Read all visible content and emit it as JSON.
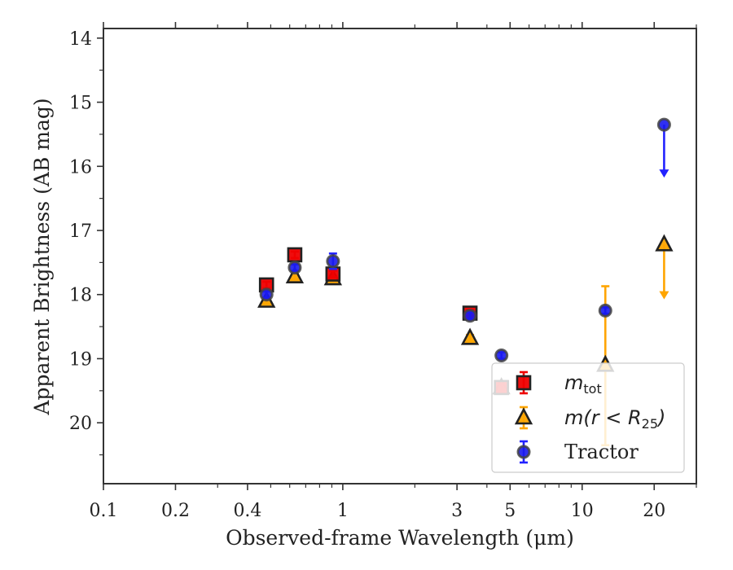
{
  "chart_data": {
    "type": "scatter",
    "xlabel": "Observed-frame Wavelength (μm)",
    "ylabel": "Apparent Brightness (AB mag)",
    "x_scale": "log",
    "xlim": [
      0.1,
      30
    ],
    "ylim": [
      20.95,
      13.85
    ],
    "y_inverted": true,
    "grid": false,
    "legend_position": "bottom-right",
    "x_ticks": [
      {
        "value": 0.1,
        "label": "0.1"
      },
      {
        "value": 0.2,
        "label": "0.2"
      },
      {
        "value": 0.4,
        "label": "0.4"
      },
      {
        "value": 1,
        "label": "1"
      },
      {
        "value": 3,
        "label": "3"
      },
      {
        "value": 5,
        "label": "5"
      },
      {
        "value": 10,
        "label": "10"
      },
      {
        "value": 20,
        "label": "20"
      }
    ],
    "x_minor_ticks": [
      0.3,
      0.5,
      0.6,
      0.7,
      0.8,
      0.9,
      2,
      4,
      6,
      7,
      8,
      9,
      30
    ],
    "y_ticks": [
      {
        "value": 14,
        "label": "14"
      },
      {
        "value": 15,
        "label": "15"
      },
      {
        "value": 16,
        "label": "16"
      },
      {
        "value": 17,
        "label": "17"
      },
      {
        "value": 18,
        "label": "18"
      },
      {
        "value": 19,
        "label": "19"
      },
      {
        "value": 20,
        "label": "20"
      }
    ],
    "y_minor_ticks": [
      14.5,
      15.5,
      16.5,
      17.5,
      18.5,
      19.5,
      20.5
    ],
    "series": [
      {
        "key": "mtot",
        "legend_main": "m",
        "legend_sub": "tot",
        "marker": "square",
        "color": "#ee0000",
        "edge": "#222222",
        "error_color": "#ee0000",
        "points": [
          {
            "x": 0.48,
            "y": 17.85,
            "err": 0.05
          },
          {
            "x": 0.63,
            "y": 17.38,
            "err": 0.05
          },
          {
            "x": 0.91,
            "y": 17.68,
            "err": 0.05
          },
          {
            "x": 3.4,
            "y": 18.29,
            "err": 0.05
          },
          {
            "x": 4.6,
            "y": 19.45,
            "err": 0.05
          }
        ]
      },
      {
        "key": "mr25",
        "legend_main": "m(r < R",
        "legend_sub": "25",
        "legend_tail": ")",
        "marker": "triangle",
        "color": "#ffa500",
        "edge": "#222222",
        "error_color": "#ffa500",
        "points": [
          {
            "x": 0.48,
            "y": 18.1,
            "err": 0.04
          },
          {
            "x": 0.63,
            "y": 17.72,
            "err": 0.04
          },
          {
            "x": 0.91,
            "y": 17.75,
            "err": 0.04
          },
          {
            "x": 3.4,
            "y": 18.68,
            "err": 0.05
          },
          {
            "x": 4.6,
            "y": 19.45,
            "err": 0.05
          },
          {
            "x": 12.5,
            "y": 19.1,
            "err_low": 1.25,
            "err_high": 1.23
          },
          {
            "x": 22,
            "y": 17.22,
            "upper_limit_to": 18.05
          }
        ]
      },
      {
        "key": "tractor",
        "legend_main": "Tractor",
        "marker": "circle",
        "color": "#1a1aee",
        "edge": "#444444",
        "error_color": "#2222ff",
        "points": [
          {
            "x": 0.48,
            "y": 18.0,
            "err": 0.05
          },
          {
            "x": 0.63,
            "y": 17.58,
            "err": 0.05
          },
          {
            "x": 0.91,
            "y": 17.48,
            "err": 0.12
          },
          {
            "x": 3.4,
            "y": 18.33,
            "err": 0.05
          },
          {
            "x": 4.6,
            "y": 18.95,
            "err": 0.05
          },
          {
            "x": 12.5,
            "y": 18.25,
            "err": 0.05
          },
          {
            "x": 22,
            "y": 15.35,
            "upper_limit_to": 16.15
          }
        ]
      }
    ]
  }
}
